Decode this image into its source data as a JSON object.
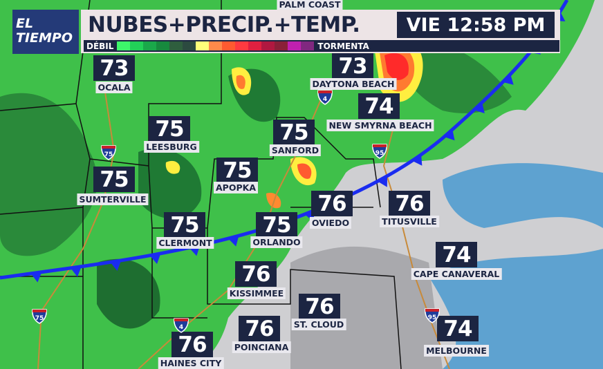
{
  "header": {
    "logo_text": [
      "EL",
      "TIEMPO"
    ],
    "title": "NUBES+PRECIP.+TEMP.",
    "time": "VIE 12:58 PM"
  },
  "legend": {
    "low_label": "DÉBIL",
    "high_label": "TORMENTA",
    "colors": [
      "#3df56a",
      "#22d058",
      "#1aa84a",
      "#178a3e",
      "#2f5e3e",
      "#2c4a40",
      "#ffff7a",
      "#ff8a4a",
      "#ff5a30",
      "#ff3a40",
      "#e02040",
      "#b01840",
      "#8a2038",
      "#c020b0",
      "#802880"
    ]
  },
  "cities": [
    {
      "name": "PALM COAST",
      "temp": ""
    },
    {
      "name": "OCALA",
      "temp": "73"
    },
    {
      "name": "DAYTONA BEACH",
      "temp": "73"
    },
    {
      "name": "NEW SMYRNA BEACH",
      "temp": "74"
    },
    {
      "name": "LEESBURG",
      "temp": "75"
    },
    {
      "name": "SANFORD",
      "temp": "75"
    },
    {
      "name": "SUMTERVILLE",
      "temp": "75"
    },
    {
      "name": "APOPKA",
      "temp": "75"
    },
    {
      "name": "OVIEDO",
      "temp": "76"
    },
    {
      "name": "TITUSVILLE",
      "temp": "76"
    },
    {
      "name": "CLERMONT",
      "temp": "75"
    },
    {
      "name": "ORLANDO",
      "temp": "75"
    },
    {
      "name": "CAPE CANAVERAL",
      "temp": "74"
    },
    {
      "name": "KISSIMMEE",
      "temp": "76"
    },
    {
      "name": "ST. CLOUD",
      "temp": "76"
    },
    {
      "name": "POINCIANA",
      "temp": "76"
    },
    {
      "name": "MELBOURNE",
      "temp": "74"
    },
    {
      "name": "HAINES CITY",
      "temp": "76"
    }
  ],
  "interstates": [
    "75",
    "4",
    "95",
    "75",
    "4",
    "95"
  ],
  "colors": {
    "front": "#1a2cf0",
    "navy": "#1c2542",
    "rain_green": "#3fc04a",
    "cloud_gray": "#cfcfd2",
    "drizzle_blue": "#4a9ad0"
  }
}
